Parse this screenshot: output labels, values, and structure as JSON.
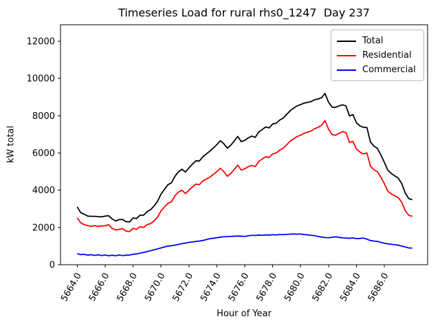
{
  "figure": {
    "title": "Timeseries Load for rural rhs0_1247  Day 237"
  },
  "chart_data": {
    "type": "line",
    "title": "Timeseries Load for rural rhs0_1247  Day 237",
    "xlabel": "Hour of Year",
    "ylabel": "kW total",
    "xlim": [
      5662.8,
      5689.1
    ],
    "ylim": [
      0,
      12890
    ],
    "grid": false,
    "legend_position": "upper right",
    "x_ticks": [
      "5664.0",
      "5666.0",
      "5668.0",
      "5670.0",
      "5672.0",
      "5674.0",
      "5676.0",
      "5678.0",
      "5680.0",
      "5682.0",
      "5684.0",
      "5686.0"
    ],
    "y_ticks": [
      "0",
      "2000",
      "4000",
      "6000",
      "8000",
      "10000",
      "12000"
    ],
    "x": [
      5664,
      5664.25,
      5664.5,
      5664.75,
      5665,
      5665.25,
      5665.5,
      5665.75,
      5666,
      5666.25,
      5666.5,
      5666.75,
      5667,
      5667.25,
      5667.5,
      5667.75,
      5668,
      5668.25,
      5668.5,
      5668.75,
      5669,
      5669.25,
      5669.5,
      5669.75,
      5670,
      5670.25,
      5670.5,
      5670.75,
      5671,
      5671.25,
      5671.5,
      5671.75,
      5672,
      5672.25,
      5672.5,
      5672.75,
      5673,
      5673.25,
      5673.5,
      5673.75,
      5674,
      5674.25,
      5674.5,
      5674.75,
      5675,
      5675.25,
      5675.5,
      5675.75,
      5676,
      5676.25,
      5676.5,
      5676.75,
      5677,
      5677.25,
      5677.5,
      5677.75,
      5678,
      5678.25,
      5678.5,
      5678.75,
      5679,
      5679.25,
      5679.5,
      5679.75,
      5680,
      5680.25,
      5680.5,
      5680.75,
      5681,
      5681.25,
      5681.5,
      5681.75,
      5682,
      5682.25,
      5682.5,
      5682.75,
      5683,
      5683.25,
      5683.5,
      5683.75,
      5684,
      5684.25,
      5684.5,
      5684.75,
      5685,
      5685.25,
      5685.5,
      5685.75,
      5686,
      5686.25,
      5686.5,
      5686.75,
      5687,
      5687.25,
      5687.5,
      5687.75,
      5688
    ],
    "series": [
      {
        "name": "Total",
        "color": "#000000",
        "values": [
          3110,
          2790,
          2710,
          2610,
          2600,
          2600,
          2580,
          2570,
          2610,
          2630,
          2460,
          2350,
          2420,
          2430,
          2310,
          2300,
          2510,
          2480,
          2660,
          2660,
          2850,
          2950,
          3150,
          3400,
          3790,
          4050,
          4300,
          4400,
          4750,
          4990,
          5130,
          4980,
          5200,
          5400,
          5580,
          5570,
          5800,
          5950,
          6100,
          6270,
          6450,
          6660,
          6500,
          6260,
          6420,
          6650,
          6890,
          6610,
          6680,
          6810,
          6910,
          6840,
          7130,
          7260,
          7400,
          7350,
          7560,
          7600,
          7770,
          7870,
          8070,
          8270,
          8410,
          8530,
          8600,
          8680,
          8720,
          8760,
          8860,
          8900,
          8970,
          9200,
          8730,
          8470,
          8450,
          8530,
          8590,
          8530,
          7990,
          8060,
          7620,
          7460,
          7380,
          7370,
          6600,
          6370,
          6250,
          5900,
          5500,
          5070,
          4900,
          4770,
          4650,
          4350,
          3850,
          3550,
          3490
        ]
      },
      {
        "name": "Residential",
        "color": "#ff0000",
        "values": [
          2520,
          2250,
          2150,
          2100,
          2060,
          2100,
          2050,
          2080,
          2090,
          2150,
          1950,
          1870,
          1900,
          1940,
          1800,
          1780,
          1950,
          1900,
          2040,
          2000,
          2150,
          2200,
          2350,
          2550,
          2890,
          3100,
          3300,
          3380,
          3700,
          3900,
          4000,
          3820,
          4000,
          4180,
          4330,
          4300,
          4500,
          4600,
          4700,
          4850,
          5000,
          5180,
          5000,
          4750,
          4900,
          5120,
          5350,
          5080,
          5160,
          5260,
          5330,
          5270,
          5540,
          5680,
          5800,
          5760,
          5950,
          6000,
          6150,
          6260,
          6440,
          6630,
          6760,
          6890,
          6950,
          7060,
          7120,
          7180,
          7300,
          7380,
          7490,
          7740,
          7280,
          7000,
          6950,
          7060,
          7150,
          7100,
          6570,
          6620,
          6220,
          6050,
          5950,
          6000,
          5300,
          5100,
          5000,
          4700,
          4350,
          3950,
          3800,
          3700,
          3600,
          3350,
          2900,
          2650,
          2600
        ]
      },
      {
        "name": "Commercial",
        "color": "#0000ff",
        "values": [
          590,
          540,
          560,
          510,
          540,
          500,
          530,
          490,
          520,
          480,
          510,
          480,
          520,
          490,
          510,
          520,
          560,
          580,
          620,
          660,
          700,
          750,
          800,
          850,
          900,
          950,
          1000,
          1020,
          1050,
          1090,
          1130,
          1160,
          1200,
          1220,
          1250,
          1270,
          1300,
          1350,
          1400,
          1420,
          1450,
          1480,
          1500,
          1510,
          1520,
          1530,
          1540,
          1530,
          1520,
          1550,
          1580,
          1570,
          1590,
          1580,
          1600,
          1590,
          1610,
          1600,
          1620,
          1610,
          1630,
          1640,
          1650,
          1640,
          1650,
          1620,
          1600,
          1580,
          1560,
          1520,
          1480,
          1460,
          1450,
          1470,
          1500,
          1470,
          1440,
          1430,
          1420,
          1440,
          1400,
          1410,
          1430,
          1370,
          1300,
          1270,
          1250,
          1200,
          1150,
          1120,
          1100,
          1070,
          1050,
          1000,
          950,
          900,
          890
        ]
      }
    ]
  }
}
